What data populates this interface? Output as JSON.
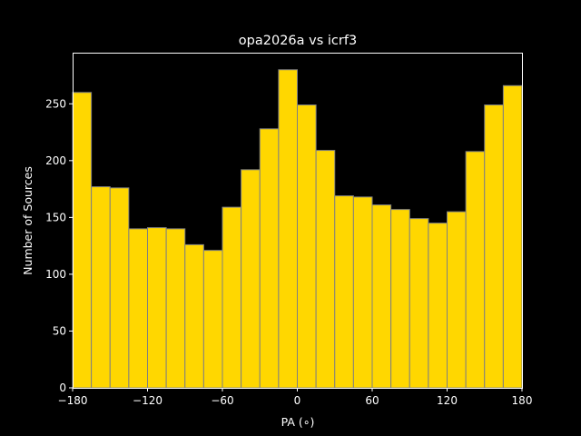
{
  "chart_data": {
    "type": "bar",
    "title": "opa2026a vs icrf3",
    "xlabel": "PA (∘)",
    "ylabel": "Number of Sources",
    "xlim": [
      -180,
      180
    ],
    "ylim": [
      0,
      295
    ],
    "bin_width": 15,
    "bin_edges_start": -180,
    "values": [
      260,
      177,
      176,
      140,
      141,
      140,
      126,
      121,
      159,
      192,
      228,
      280,
      249,
      209,
      169,
      168,
      161,
      157,
      149,
      145,
      155,
      208,
      249,
      266
    ],
    "x_ticks": [
      -180,
      -120,
      -60,
      0,
      60,
      120,
      180
    ],
    "x_tick_labels": [
      "−180",
      "−120",
      "−60",
      "0",
      "60",
      "120",
      "180"
    ],
    "y_ticks": [
      0,
      50,
      100,
      150,
      200,
      250
    ],
    "y_tick_labels": [
      "0",
      "50",
      "100",
      "150",
      "200",
      "250"
    ],
    "grid": false,
    "colors": {
      "background": "#000000",
      "bar_fill": "#ffd700",
      "bar_edge": "#808080",
      "axis": "#ffffff",
      "text": "#ffffff"
    }
  }
}
